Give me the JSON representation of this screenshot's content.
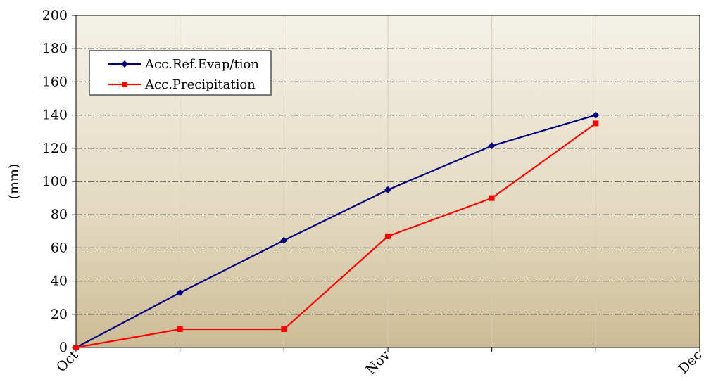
{
  "chart_data": {
    "type": "line",
    "ylabel": "(mm)",
    "xlabel": "",
    "x_tick_labels": [
      "Oct",
      "Nov",
      "Dec"
    ],
    "x_tick_positions": [
      0,
      3,
      6
    ],
    "x": [
      0,
      1,
      2,
      3,
      4,
      5
    ],
    "ylim": [
      0,
      200
    ],
    "xlim": [
      0,
      6
    ],
    "y_ticks": [
      0,
      20,
      40,
      60,
      80,
      100,
      120,
      140,
      160,
      180,
      200
    ],
    "grid": "horizontal dash-dot, vertical solid light",
    "legend_position": "top-left",
    "series": [
      {
        "name": "Acc.Ref.Evap/tion",
        "values": [
          0,
          33,
          64.5,
          95,
          121.5,
          140
        ],
        "color": "#000080",
        "marker": "diamond"
      },
      {
        "name": "Acc.Precipitation",
        "values": [
          0,
          11,
          11,
          67,
          90,
          135
        ],
        "color": "#ff0000",
        "marker": "square"
      }
    ]
  }
}
